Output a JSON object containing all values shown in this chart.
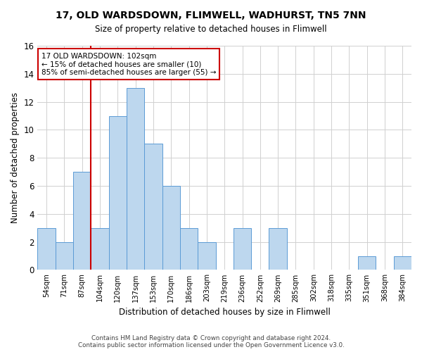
{
  "title": "17, OLD WARDSDOWN, FLIMWELL, WADHURST, TN5 7NN",
  "subtitle": "Size of property relative to detached houses in Flimwell",
  "xlabel": "Distribution of detached houses by size in Flimwell",
  "ylabel": "Number of detached properties",
  "categories": [
    "54sqm",
    "71sqm",
    "87sqm",
    "104sqm",
    "120sqm",
    "137sqm",
    "153sqm",
    "170sqm",
    "186sqm",
    "203sqm",
    "219sqm",
    "236sqm",
    "252sqm",
    "269sqm",
    "285sqm",
    "302sqm",
    "318sqm",
    "335sqm",
    "351sqm",
    "368sqm",
    "384sqm"
  ],
  "values": [
    3,
    2,
    7,
    3,
    11,
    13,
    9,
    6,
    3,
    2,
    0,
    3,
    0,
    3,
    0,
    0,
    0,
    0,
    1,
    0,
    1
  ],
  "bar_color": "#BDD7EE",
  "bar_edge_color": "#5B9BD5",
  "vline_x_index": 3,
  "vline_color": "#CC0000",
  "annotation_line1": "17 OLD WARDSDOWN: 102sqm",
  "annotation_line2": "← 15% of detached houses are smaller (10)",
  "annotation_line3": "85% of semi-detached houses are larger (55) →",
  "annotation_box_edge_color": "#CC0000",
  "ylim": [
    0,
    16
  ],
  "yticks": [
    0,
    2,
    4,
    6,
    8,
    10,
    12,
    14,
    16
  ],
  "grid_color": "#D0D0D0",
  "background_color": "#FFFFFF",
  "footer_line1": "Contains HM Land Registry data © Crown copyright and database right 2024.",
  "footer_line2": "Contains public sector information licensed under the Open Government Licence v3.0."
}
